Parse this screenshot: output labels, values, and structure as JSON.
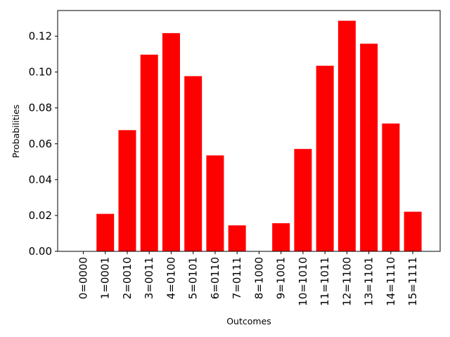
{
  "chart_data": {
    "type": "bar",
    "title": "",
    "xlabel": "Outcomes",
    "ylabel": "Probabilities",
    "categories": [
      "0=0000",
      "1=0001",
      "2=0010",
      "3=0011",
      "4=0100",
      "5=0101",
      "6=0110",
      "7=0111",
      "8=1000",
      "9=1001",
      "10=1010",
      "11=1011",
      "12=1100",
      "13=1101",
      "14=1110",
      "15=1111"
    ],
    "values": [
      0.0,
      0.0209,
      0.0676,
      0.1097,
      0.1217,
      0.0977,
      0.0535,
      0.0145,
      0.0,
      0.0157,
      0.0571,
      0.1035,
      0.1286,
      0.1158,
      0.0713,
      0.0221
    ],
    "ylim": [
      0,
      0.1343
    ],
    "yticks": [
      "0.00",
      "0.02",
      "0.04",
      "0.06",
      "0.08",
      "0.10",
      "0.12"
    ],
    "bar_color": "#ff0000",
    "grid": false,
    "legend": "none"
  }
}
